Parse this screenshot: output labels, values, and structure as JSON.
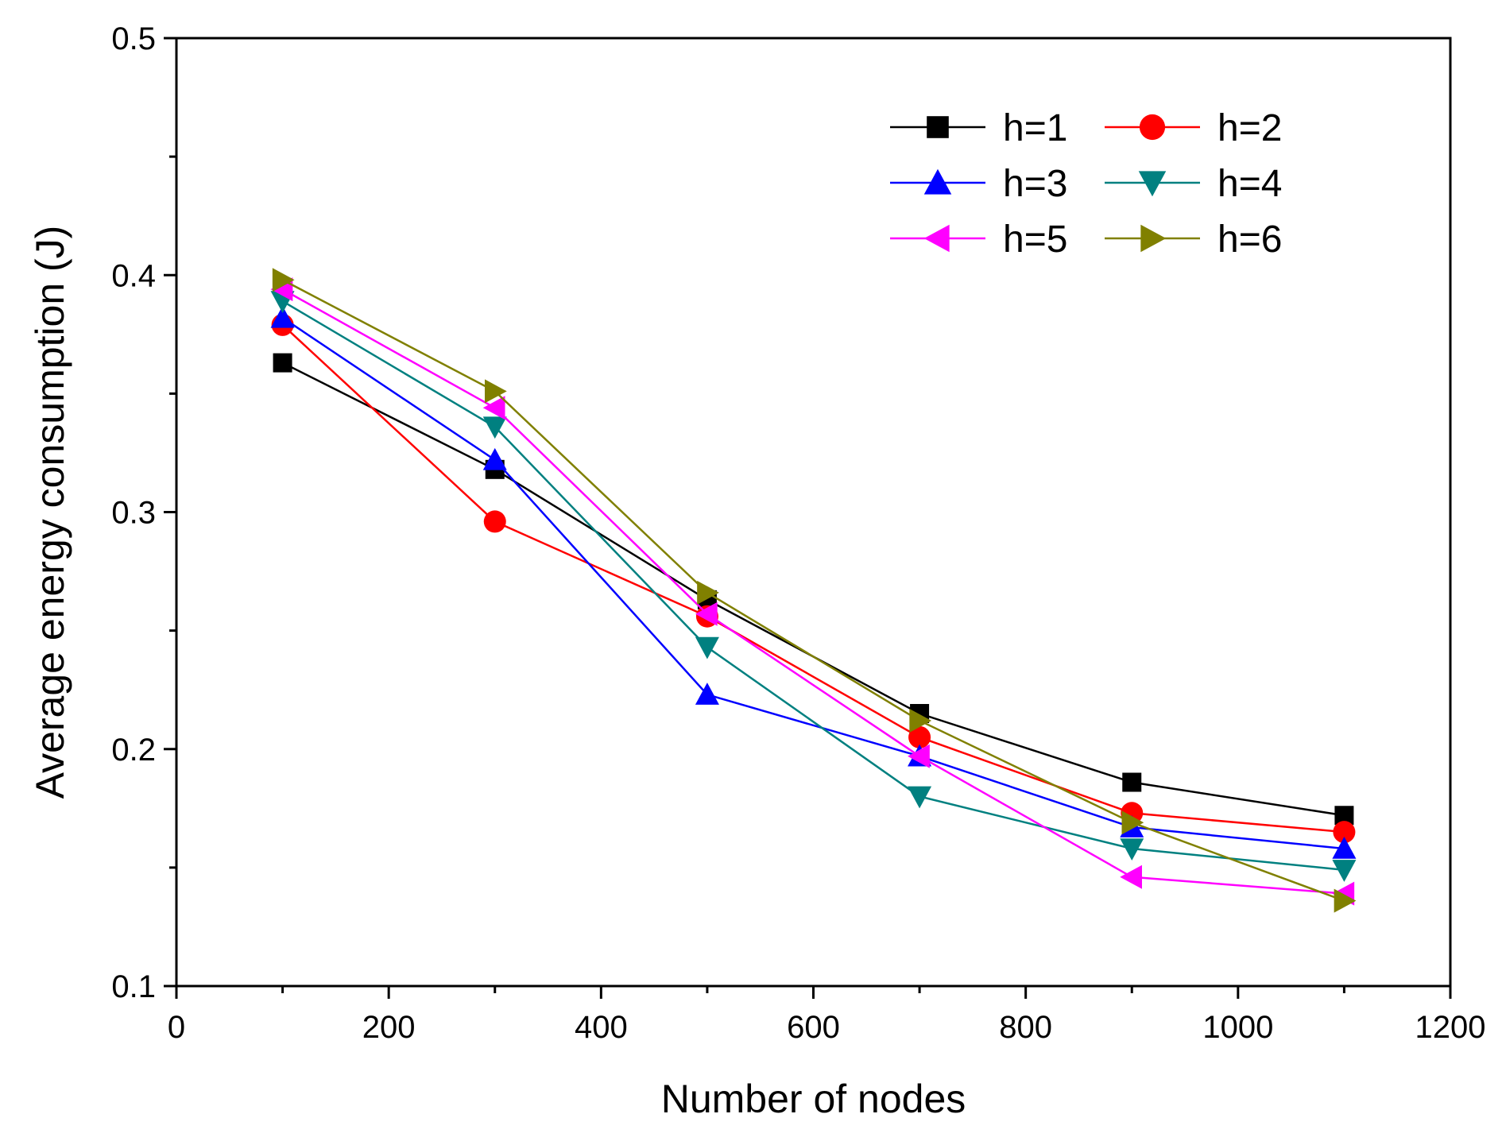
{
  "chart_data": {
    "type": "line",
    "title": "",
    "xlabel": "Number of nodes",
    "ylabel": "Average energy consumption (J)",
    "xlim": [
      0,
      1200
    ],
    "ylim": [
      0.1,
      0.5
    ],
    "xticks": [
      0,
      200,
      400,
      600,
      800,
      1000,
      1200
    ],
    "xtick_labels": [
      "0",
      "200",
      "400",
      "600",
      "800",
      "1000",
      "1200"
    ],
    "yticks": [
      0.1,
      0.2,
      0.3,
      0.4,
      0.5
    ],
    "ytick_labels": [
      "0.1",
      "0.2",
      "0.3",
      "0.4",
      "0.5"
    ],
    "grid": false,
    "legend_position": "top-right",
    "x": [
      100,
      300,
      500,
      700,
      900,
      1100
    ],
    "series": [
      {
        "name": "h=1",
        "color": "#000000",
        "marker": "square",
        "values": [
          0.363,
          0.318,
          0.263,
          0.215,
          0.186,
          0.172
        ]
      },
      {
        "name": "h=2",
        "color": "#ff0000",
        "marker": "circle",
        "values": [
          0.379,
          0.296,
          0.256,
          0.205,
          0.173,
          0.165
        ]
      },
      {
        "name": "h=3",
        "color": "#0000ff",
        "marker": "triangle-up",
        "values": [
          0.382,
          0.322,
          0.223,
          0.197,
          0.167,
          0.158
        ]
      },
      {
        "name": "h=4",
        "color": "#008080",
        "marker": "triangle-down",
        "values": [
          0.389,
          0.336,
          0.243,
          0.18,
          0.158,
          0.149
        ]
      },
      {
        "name": "h=5",
        "color": "#ff00ff",
        "marker": "triangle-left",
        "values": [
          0.394,
          0.344,
          0.257,
          0.197,
          0.146,
          0.139
        ]
      },
      {
        "name": "h=6",
        "color": "#808000",
        "marker": "triangle-right",
        "values": [
          0.398,
          0.351,
          0.266,
          0.212,
          0.169,
          0.136
        ]
      }
    ]
  }
}
